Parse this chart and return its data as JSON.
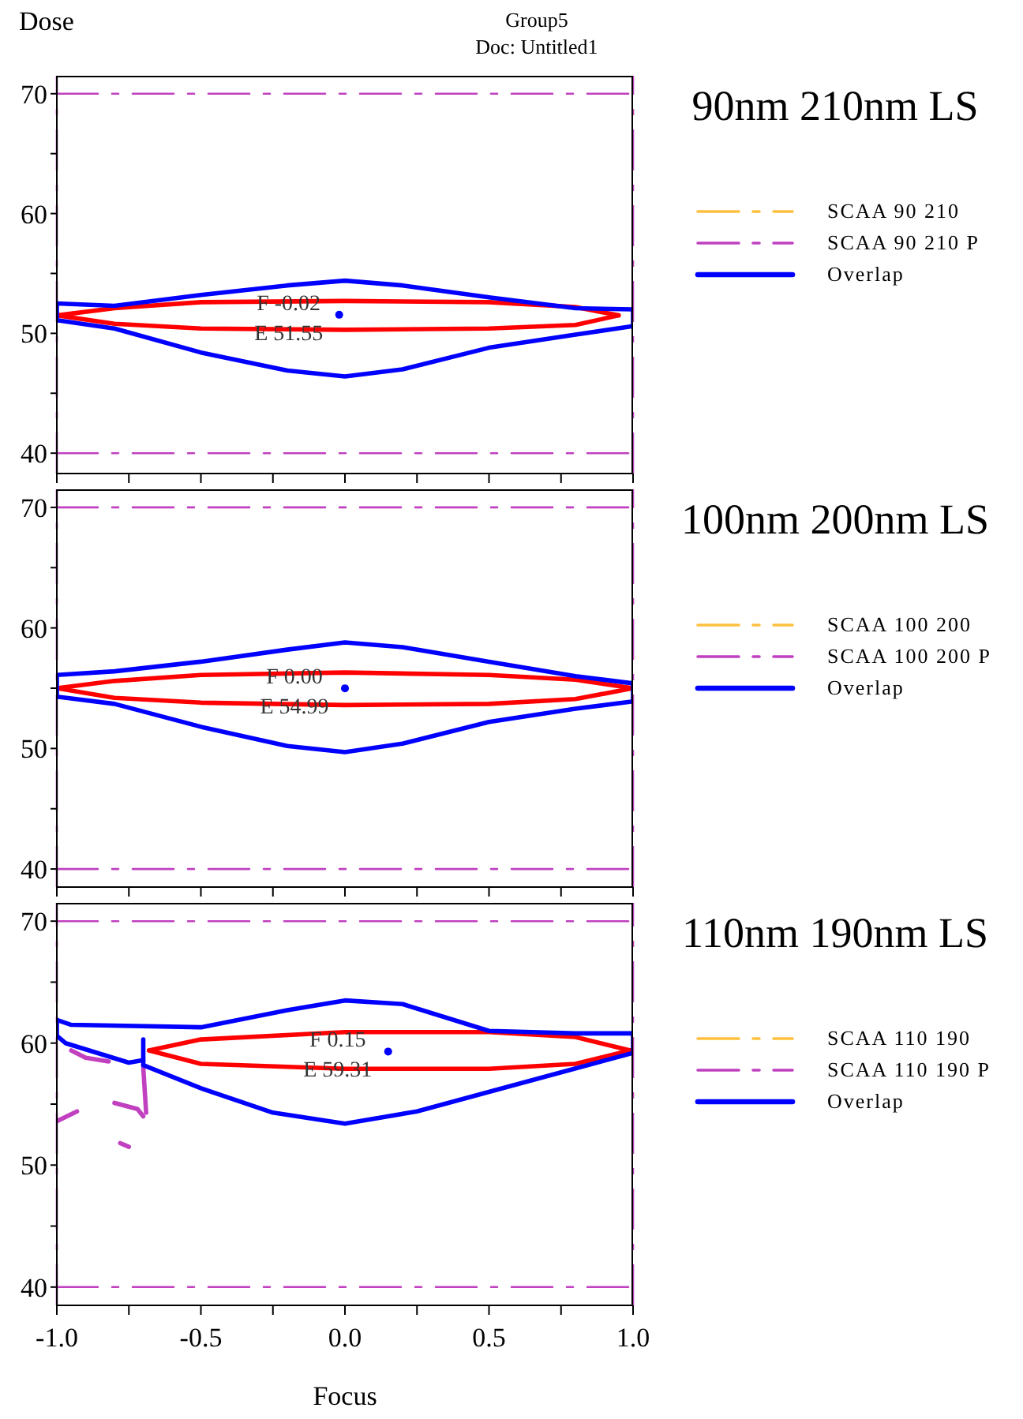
{
  "chart_data": [
    {
      "type": "line",
      "ylabel": "Dose",
      "legend": "right",
      "tick_labels": "y",
      "xlim": [
        -1,
        1
      ],
      "xticks": [
        -1,
        {
          "value": -0.75,
          "label": null
        },
        -0.5,
        {
          "value": -0.25,
          "label": null
        },
        0,
        {
          "value": 0.25,
          "label": null
        },
        0.5,
        {
          "value": 0.75,
          "label": null
        },
        1
      ],
      "ylim": [
        38.3,
        71.5
      ],
      "yticks": [
        40,
        {
          "value": 45,
          "label": null
        },
        50,
        {
          "value": 55,
          "label": null
        },
        60,
        {
          "value": 65,
          "label": null
        },
        70
      ],
      "annotations": [
        "90nm 210nm LS",
        "Group5",
        "Doc: Untitled1",
        {
          "text": "F -0.02",
          "x": -0.02,
          "y": 51.55
        },
        {
          "text": "E 51.55",
          "x": -0.02,
          "y": 51.55
        }
      ],
      "ref_lines": [
        {
          "axis": "x",
          "value": -1,
          "color": "#c040c0",
          "line_style": "dashed"
        },
        {
          "axis": "x",
          "value": 1,
          "color": "#c040c0",
          "line_style": "dashed"
        }
      ],
      "series": [
        {
          "name": "SCAA 90 210",
          "color": "#ffc040",
          "line_style": "dashed"
        },
        {
          "name": "SCAA 90 210 P",
          "color": "#c040c0",
          "line_style": "dashed",
          "x": [
            -1,
            1
          ],
          "values": [
            70,
            70
          ]
        },
        {
          "color": "#c040c0",
          "line_style": "dashed",
          "x": [
            -1,
            1
          ],
          "values": [
            40,
            40
          ]
        },
        {
          "color": "#ff0000",
          "line_style": "solid",
          "x": [
            -1,
            -0.8,
            -0.5,
            0,
            0.5,
            0.8,
            0.95
          ],
          "values": [
            51.5,
            52.1,
            52.6,
            52.7,
            52.6,
            52.2,
            51.5
          ]
        },
        {
          "color": "#ff0000",
          "line_style": "solid",
          "x": [
            -1,
            -0.8,
            -0.5,
            0,
            0.5,
            0.8,
            0.95
          ],
          "values": [
            51.5,
            50.8,
            50.4,
            50.3,
            50.4,
            50.7,
            51.5
          ]
        },
        {
          "name": "Overlap",
          "color": "#0000ff",
          "line_style": "solid",
          "x": [
            -1,
            -0.8,
            -0.5,
            -0.2,
            0,
            0.2,
            0.5,
            0.8,
            1
          ],
          "values": [
            52.5,
            52.3,
            53.2,
            54.0,
            54.4,
            54.0,
            53.0,
            52.1,
            52.0
          ]
        },
        {
          "color": "#0000ff",
          "line_style": "solid",
          "x": [
            -1,
            -0.8,
            -0.5,
            -0.2,
            0,
            0.2,
            0.5,
            0.8,
            1
          ],
          "values": [
            51.1,
            50.4,
            48.4,
            46.9,
            46.4,
            47.0,
            48.8,
            49.9,
            50.6
          ]
        },
        {
          "color": "#0000ff",
          "line_style": "solid",
          "x": [
            -1,
            -1
          ],
          "values": [
            51.1,
            52.5
          ]
        },
        {
          "color": "#0000ff",
          "line_style": "solid",
          "x": [
            1,
            1
          ],
          "values": [
            52.0,
            50.6
          ]
        },
        {
          "type": "scatter",
          "color": "#0000ff",
          "x": [
            -0.02
          ],
          "values": [
            51.55
          ]
        }
      ]
    },
    {
      "type": "line",
      "legend": "right",
      "tick_labels": "y",
      "xlim": [
        -1,
        1
      ],
      "xticks": [
        -1,
        {
          "value": -0.75,
          "label": null
        },
        -0.5,
        {
          "value": -0.25,
          "label": null
        },
        0,
        {
          "value": 0.25,
          "label": null
        },
        0.5,
        {
          "value": 0.75,
          "label": null
        },
        1
      ],
      "ylim": [
        38.5,
        71.5
      ],
      "yticks": [
        40,
        {
          "value": 45,
          "label": null
        },
        50,
        {
          "value": 55,
          "label": null
        },
        60,
        {
          "value": 65,
          "label": null
        },
        70
      ],
      "annotations": [
        "100nm 200nm LS",
        {
          "text": "F 0.00",
          "x": 0,
          "y": 54.99
        },
        {
          "text": "E 54.99",
          "x": 0,
          "y": 54.99
        }
      ],
      "ref_lines": [
        {
          "axis": "x",
          "value": -1,
          "color": "#c040c0",
          "line_style": "dashed"
        },
        {
          "axis": "x",
          "value": 1,
          "color": "#c040c0",
          "line_style": "dashed"
        }
      ],
      "series": [
        {
          "name": "SCAA 100 200",
          "color": "#ffc040",
          "line_style": "dashed"
        },
        {
          "name": "SCAA 100 200 P",
          "color": "#c040c0",
          "line_style": "dashed",
          "x": [
            -1,
            1
          ],
          "values": [
            70,
            70
          ]
        },
        {
          "color": "#c040c0",
          "line_style": "dashed",
          "x": [
            -1,
            1
          ],
          "values": [
            40,
            40
          ]
        },
        {
          "color": "#ff0000",
          "line_style": "solid",
          "x": [
            -1,
            -0.8,
            -0.5,
            0,
            0.5,
            0.8,
            1
          ],
          "values": [
            55.0,
            55.6,
            56.1,
            56.3,
            56.1,
            55.7,
            55.0
          ]
        },
        {
          "color": "#ff0000",
          "line_style": "solid",
          "x": [
            -1,
            -0.8,
            -0.5,
            0,
            0.5,
            0.8,
            1
          ],
          "values": [
            55.0,
            54.2,
            53.8,
            53.6,
            53.7,
            54.1,
            55.0
          ]
        },
        {
          "name": "Overlap",
          "color": "#0000ff",
          "line_style": "solid",
          "x": [
            -1,
            -0.8,
            -0.5,
            -0.2,
            0,
            0.2,
            0.5,
            0.8,
            1
          ],
          "values": [
            56.1,
            56.4,
            57.2,
            58.2,
            58.8,
            58.4,
            57.2,
            56.0,
            55.4
          ]
        },
        {
          "color": "#0000ff",
          "line_style": "solid",
          "x": [
            -1,
            -0.8,
            -0.5,
            -0.2,
            0,
            0.2,
            0.5,
            0.8,
            1
          ],
          "values": [
            54.3,
            53.7,
            51.8,
            50.2,
            49.7,
            50.4,
            52.2,
            53.3,
            53.9
          ]
        },
        {
          "color": "#0000ff",
          "line_style": "solid",
          "x": [
            -1,
            -1
          ],
          "values": [
            54.3,
            56.1
          ]
        },
        {
          "color": "#0000ff",
          "line_style": "solid",
          "x": [
            1,
            1
          ],
          "values": [
            55.4,
            53.9
          ]
        },
        {
          "type": "scatter",
          "color": "#0000ff",
          "x": [
            0
          ],
          "values": [
            54.99
          ]
        }
      ]
    },
    {
      "type": "line",
      "xlabel": "Focus",
      "legend": "right",
      "xlim": [
        -1,
        1
      ],
      "xticks": [
        {
          "value": -1,
          "label": "-1.0"
        },
        {
          "value": -0.75,
          "label": null
        },
        -0.5,
        {
          "value": -0.25,
          "label": null
        },
        {
          "value": 0,
          "label": "0.0"
        },
        {
          "value": 0.25,
          "label": null
        },
        0.5,
        {
          "value": 0.75,
          "label": null
        },
        {
          "value": 1,
          "label": "1.0"
        }
      ],
      "ylim": [
        38.5,
        71.5
      ],
      "yticks": [
        40,
        {
          "value": 45,
          "label": null
        },
        50,
        {
          "value": 55,
          "label": null
        },
        60,
        {
          "value": 65,
          "label": null
        },
        70
      ],
      "annotations": [
        "110nm 190nm LS",
        {
          "text": "F 0.15",
          "x": 0.15,
          "y": 59.31
        },
        {
          "text": "E 59.31",
          "x": 0.15,
          "y": 59.31
        }
      ],
      "ref_lines": [
        {
          "axis": "x",
          "value": -1,
          "color": "#c040c0",
          "line_style": "dashed"
        },
        {
          "axis": "x",
          "value": 1,
          "color": "#c040c0",
          "line_style": "dashed"
        }
      ],
      "series": [
        {
          "name": "SCAA 110 190",
          "color": "#ffc040",
          "line_style": "dashed"
        },
        {
          "name": "SCAA 110 190 P",
          "color": "#c040c0",
          "line_style": "dashed",
          "x": [
            -1,
            1
          ],
          "values": [
            70,
            70
          ]
        },
        {
          "color": "#c040c0",
          "line_style": "dashed",
          "x": [
            -1,
            1
          ],
          "values": [
            40,
            40
          ]
        },
        {
          "color": "#c040c0",
          "line_style": "solid",
          "x": [
            -0.95,
            -0.9,
            -0.82
          ],
          "values": [
            59.4,
            58.8,
            58.5
          ]
        },
        {
          "color": "#c040c0",
          "line_style": "solid",
          "x": [
            -0.8,
            -0.72,
            -0.7
          ],
          "values": [
            55.1,
            54.6,
            54.0
          ]
        },
        {
          "color": "#c040c0",
          "line_style": "solid",
          "x": [
            -0.7,
            -0.69
          ],
          "values": [
            58.0,
            54.3
          ]
        },
        {
          "color": "#c040c0",
          "line_style": "solid",
          "x": [
            -1,
            -0.93
          ],
          "values": [
            53.6,
            54.4
          ]
        },
        {
          "color": "#c040c0",
          "line_style": "solid",
          "x": [
            -0.78,
            -0.75
          ],
          "values": [
            51.8,
            51.5
          ]
        },
        {
          "color": "#ff0000",
          "line_style": "solid",
          "x": [
            -0.68,
            -0.5,
            0,
            0.5,
            0.8,
            0.99
          ],
          "values": [
            59.4,
            60.3,
            60.9,
            60.9,
            60.5,
            59.4
          ]
        },
        {
          "color": "#ff0000",
          "line_style": "solid",
          "x": [
            -0.68,
            -0.5,
            0,
            0.5,
            0.8,
            0.99
          ],
          "values": [
            59.4,
            58.3,
            57.9,
            57.9,
            58.3,
            59.4
          ]
        },
        {
          "name": "Overlap",
          "color": "#0000ff",
          "line_style": "solid",
          "x": [
            -1,
            -0.95,
            -0.5,
            -0.2,
            0,
            0.2,
            0.5,
            0.8,
            1
          ],
          "values": [
            61.9,
            61.5,
            61.3,
            62.7,
            63.5,
            63.2,
            61.0,
            60.8,
            60.8
          ]
        },
        {
          "color": "#0000ff",
          "line_style": "solid",
          "x": [
            -0.7,
            -0.5,
            -0.25,
            0,
            0.25,
            0.5,
            0.75,
            1
          ],
          "values": [
            58.2,
            56.3,
            54.3,
            53.4,
            54.4,
            56.0,
            57.6,
            59.2
          ]
        },
        {
          "color": "#0000ff",
          "line_style": "solid",
          "x": [
            -1,
            -0.97,
            -0.75,
            -0.7
          ],
          "values": [
            60.6,
            60.0,
            58.4,
            58.6
          ]
        },
        {
          "color": "#0000ff",
          "line_style": "solid",
          "x": [
            -1,
            -1
          ],
          "values": [
            60.6,
            61.9
          ]
        },
        {
          "color": "#0000ff",
          "line_style": "solid",
          "x": [
            1,
            1
          ],
          "values": [
            60.8,
            59.2
          ]
        },
        {
          "color": "#0000ff",
          "line_style": "solid",
          "x": [
            -0.7,
            -0.7
          ],
          "values": [
            58.2,
            60.3
          ]
        },
        {
          "type": "scatter",
          "color": "#0000ff",
          "x": [
            0.15
          ],
          "values": [
            59.31
          ]
        }
      ]
    }
  ]
}
